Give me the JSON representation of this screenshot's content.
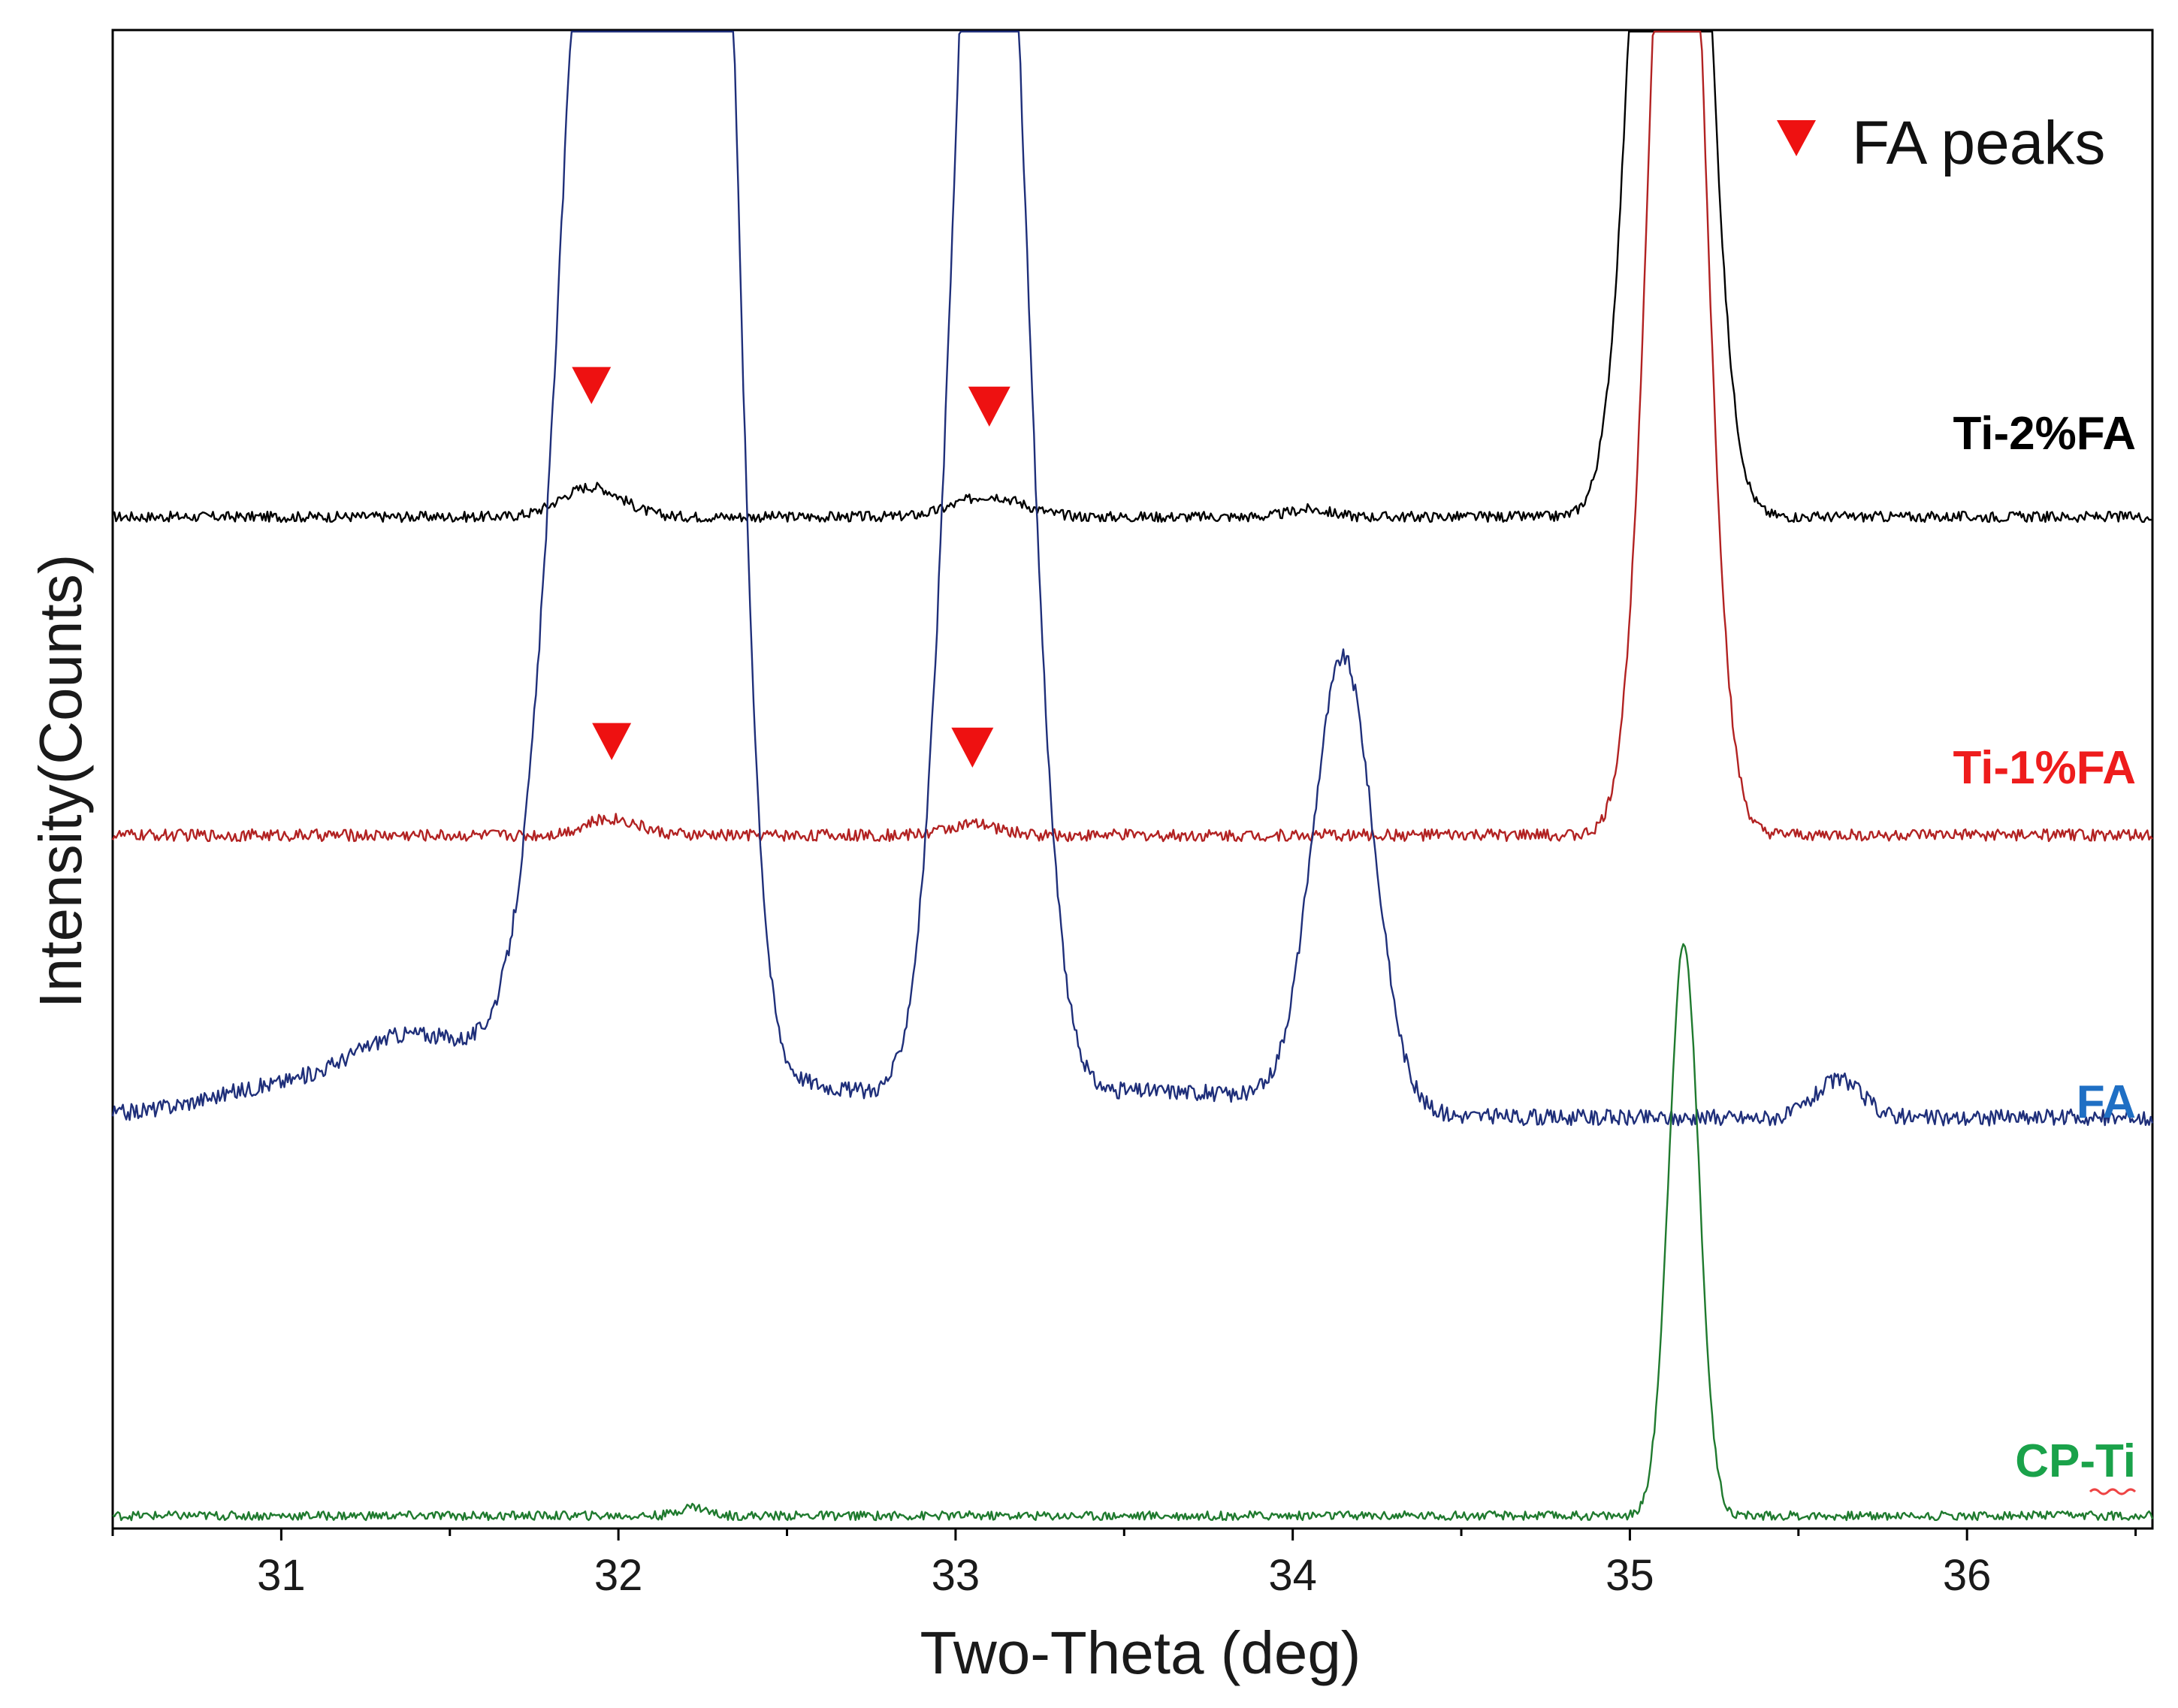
{
  "chart_data": {
    "type": "line",
    "title": "",
    "xlabel": "Two-Theta (deg)",
    "ylabel": "Intensity(Counts)",
    "xlim": [
      30.5,
      36.55
    ],
    "xticks": [
      31,
      32,
      33,
      34,
      35,
      36
    ],
    "minor_tick_step": 0.5,
    "grid": false,
    "legend": {
      "label": "FA peaks",
      "marker": "red-down-triangle",
      "placement": "top-right"
    },
    "colors": {
      "Ti-2%FA": "#000000",
      "Ti-1%FA": "#b22222",
      "FA": "#1f2f7a",
      "CP-Ti": "#1f7a2e",
      "marker": "#ee1111",
      "FA_label": "#1f6fc4",
      "CP-Ti_label": "#1aa24a",
      "Ti-1%FA_label": "#ee1c1c"
    },
    "series": [
      {
        "name": "Ti-2%FA",
        "baseline": 680,
        "noise": 7,
        "peaks": [
          [
            31.92,
            40,
            0.09
          ],
          [
            33.1,
            28,
            0.1
          ],
          [
            34.05,
            10,
            0.06
          ],
          [
            35.12,
            1900,
            0.085
          ]
        ]
      },
      {
        "name": "Ti-1%FA",
        "baseline": 452,
        "noise": 8,
        "peaks": [
          [
            31.98,
            22,
            0.08
          ],
          [
            33.05,
            14,
            0.08
          ],
          [
            35.14,
            1700,
            0.075
          ]
        ]
      },
      {
        "name": "FA",
        "baseline": 190,
        "noise": 11,
        "peaks": [
          [
            30.95,
            20,
            0.2
          ],
          [
            31.35,
            50,
            0.15
          ],
          [
            31.98,
            2100,
            0.13
          ],
          [
            32.26,
            2300,
            0.08
          ],
          [
            33.1,
            2100,
            0.1
          ],
          [
            34.15,
            600,
            0.09
          ],
          [
            35.62,
            50,
            0.07
          ]
        ]
      },
      {
        "name": "CP-Ti",
        "baseline": 0,
        "noise": 6,
        "peaks": [
          [
            32.22,
            12,
            0.04
          ],
          [
            35.16,
            760,
            0.045
          ]
        ]
      }
    ],
    "annotations": [
      {
        "series": "Ti-2%FA",
        "x": 31.92,
        "marker": "red-down-triangle"
      },
      {
        "series": "Ti-2%FA",
        "x": 33.1,
        "marker": "red-down-triangle"
      },
      {
        "series": "Ti-1%FA",
        "x": 31.98,
        "marker": "red-down-triangle"
      },
      {
        "series": "Ti-1%FA",
        "x": 33.05,
        "marker": "red-down-triangle"
      }
    ],
    "series_labels": [
      "Ti-2%FA",
      "Ti-1%FA",
      "FA",
      "CP-Ti"
    ]
  }
}
